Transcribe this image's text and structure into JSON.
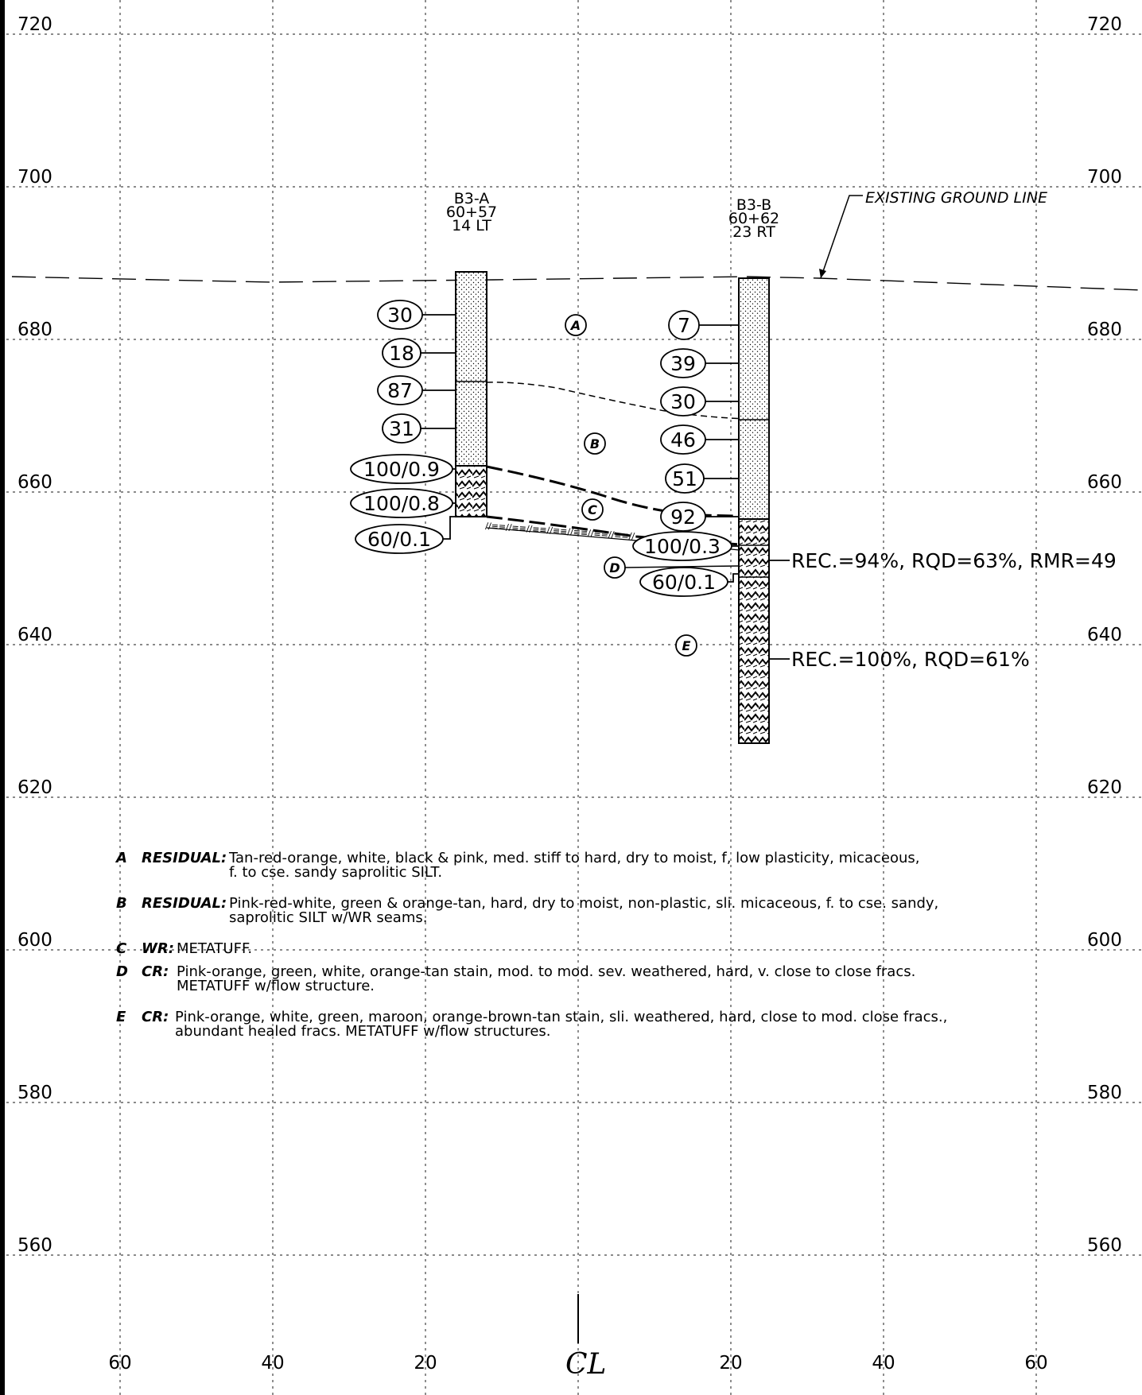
{
  "elevation_labels": [
    "720",
    "700",
    "680",
    "660",
    "640",
    "620",
    "600",
    "580",
    "560"
  ],
  "offset_labels": [
    "60",
    "40",
    "20",
    "20",
    "40",
    "60"
  ],
  "centerline_symbol": "CL",
  "ground_line_label": "EXISTING GROUND LINE",
  "borings": [
    {
      "name": "B3-A",
      "station": "60+57",
      "offset": "14 LT",
      "blow_counts": [
        "30",
        "18",
        "87",
        "31",
        "100/0.9",
        "100/0.8",
        "60/0.1"
      ]
    },
    {
      "name": "B3-B",
      "station": "60+62",
      "offset": "23 RT",
      "blow_counts": [
        "7",
        "39",
        "30",
        "46",
        "51",
        "92",
        "100/0.3",
        "60/0.1"
      ],
      "core_notes": [
        "REC.=94%, RQD=63%, RMR=49",
        "REC.=100%, RQD=61%"
      ]
    }
  ],
  "strata_markers": [
    "A",
    "B",
    "C",
    "D",
    "E"
  ],
  "legend": [
    {
      "letter": "A",
      "type": "RESIDUAL:",
      "lines": [
        "Tan-red-orange, white, black & pink, med. stiff to hard, dry to moist, f, low plasticity, micaceous,",
        "f. to cse. sandy saprolitic SILT."
      ]
    },
    {
      "letter": "B",
      "type": "RESIDUAL:",
      "lines": [
        "Pink-red-white, green & orange-tan, hard, dry to moist, non-plastic, sli. micaceous, f. to cse. sandy,",
        "saprolitic SILT w/WR seams."
      ]
    },
    {
      "letter": "C",
      "type": "WR:",
      "lines": [
        "METATUFF."
      ]
    },
    {
      "letter": "D",
      "type": "CR:",
      "lines": [
        "Pink-orange, green, white, orange-tan stain, mod. to mod. sev. weathered, hard, v. close to close fracs.",
        "METATUFF w/flow structure."
      ]
    },
    {
      "letter": "E",
      "type": "CR:",
      "lines": [
        "Pink-orange, white, green, maroon, orange-brown-tan stain, sli. weathered, hard, close to mod. close fracs.,",
        "abundant healed fracs. METATUFF w/flow structures."
      ]
    }
  ]
}
